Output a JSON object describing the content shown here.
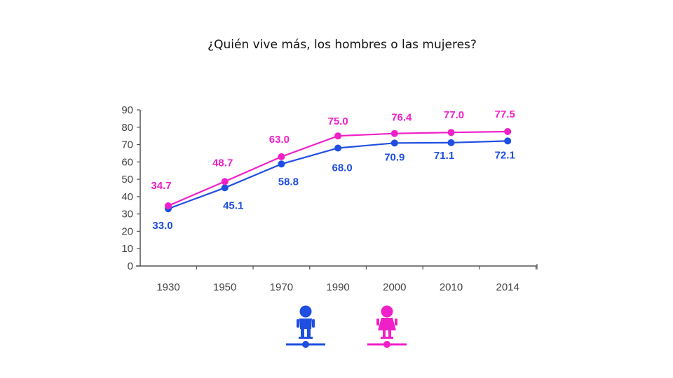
{
  "page": {
    "title": "¿Quién vive más, los hombres o las mujeres?"
  },
  "chart_data": {
    "type": "line",
    "categories": [
      "1930",
      "1950",
      "1970",
      "1990",
      "2000",
      "2010",
      "2014"
    ],
    "ylim": [
      0,
      90
    ],
    "yticks": [
      0,
      10,
      20,
      30,
      40,
      50,
      60,
      70,
      80,
      90
    ],
    "grid": false,
    "legend": "bottom (icons)",
    "series": [
      {
        "key": "men",
        "icon": "male-figure-icon",
        "color": "#1f4fe0",
        "values": [
          33.0,
          45.1,
          58.8,
          68.0,
          70.9,
          71.1,
          72.1
        ],
        "labels": [
          "33.0",
          "45.1",
          "58.8",
          "68.0",
          "70.9",
          "71.1",
          "72.1"
        ]
      },
      {
        "key": "women",
        "icon": "female-figure-icon",
        "color": "#f020c8",
        "values": [
          34.7,
          48.7,
          63.0,
          75.0,
          76.4,
          77.0,
          77.5
        ],
        "labels": [
          "34.7",
          "48.7",
          "63.0",
          "75.0",
          "76.4",
          "77.0",
          "77.5"
        ]
      }
    ]
  }
}
